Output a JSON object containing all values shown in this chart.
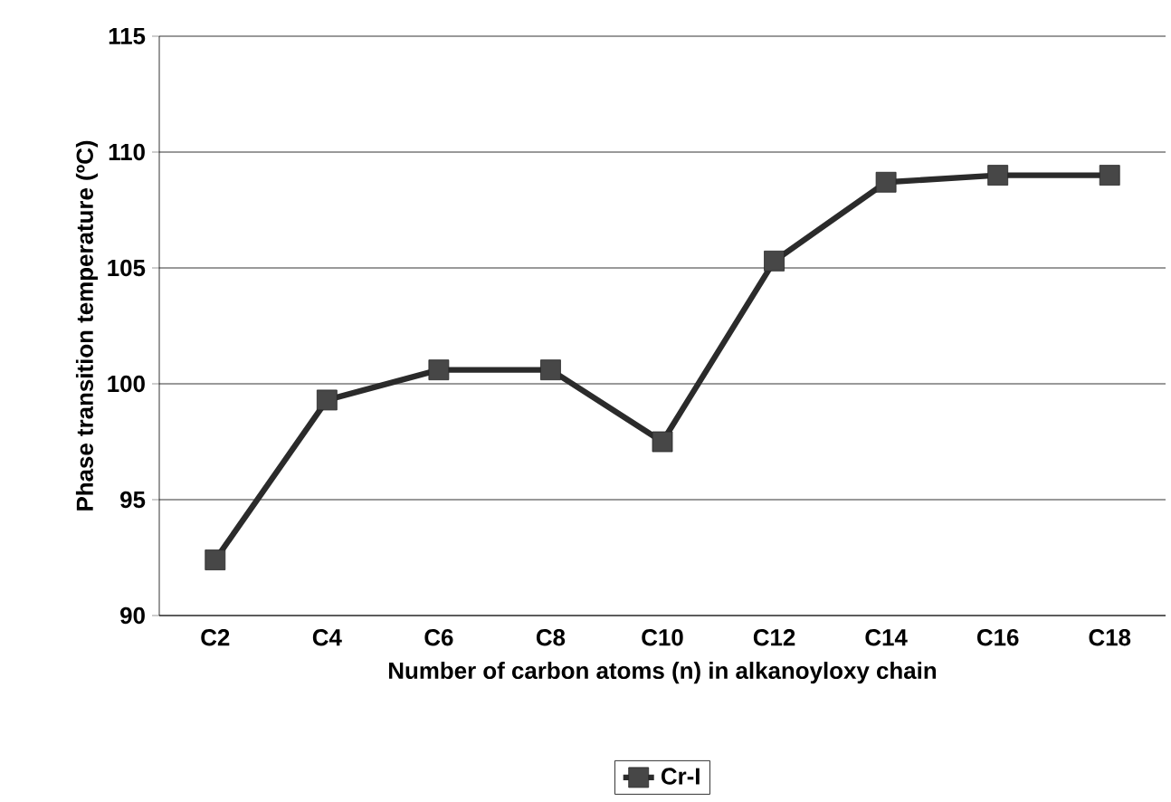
{
  "chart_data": {
    "type": "line",
    "xlabel": "Number of carbon atoms (n) in alkanoyloxy chain",
    "ylabel": "Phase transition temperature (ºC)",
    "categories": [
      "C2",
      "C4",
      "C6",
      "C8",
      "C10",
      "C12",
      "C14",
      "C16",
      "C18"
    ],
    "series": [
      {
        "name": "Cr-I",
        "color": "#2b2b2b",
        "values": [
          92.4,
          99.3,
          100.6,
          100.6,
          97.5,
          105.3,
          108.7,
          109.0,
          109.0
        ]
      }
    ],
    "ylim": [
      90,
      115
    ],
    "yticks": [
      90,
      95,
      100,
      105,
      110,
      115
    ],
    "grid": "y",
    "legend": "bottom",
    "marker": "square",
    "line_style": "solid"
  }
}
